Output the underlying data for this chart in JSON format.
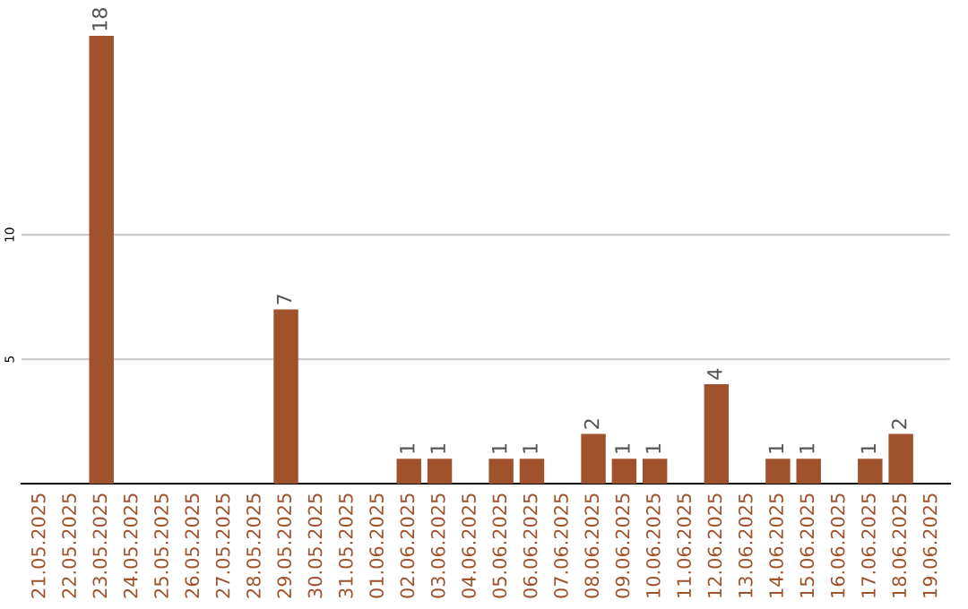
{
  "chart_data": {
    "type": "bar",
    "categories": [
      "21.05.2025",
      "22.05.2025",
      "23.05.2025",
      "24.05.2025",
      "25.05.2025",
      "26.05.2025",
      "27.05.2025",
      "28.05.2025",
      "29.05.2025",
      "30.05.2025",
      "31.05.2025",
      "01.06.2025",
      "02.06.2025",
      "03.06.2025",
      "04.06.2025",
      "05.06.2025",
      "06.06.2025",
      "07.06.2025",
      "08.06.2025",
      "09.06.2025",
      "10.06.2025",
      "11.06.2025",
      "12.06.2025",
      "13.06.2025",
      "14.06.2025",
      "15.06.2025",
      "16.06.2025",
      "17.06.2025",
      "18.06.2025",
      "19.06.2025"
    ],
    "values": [
      0,
      0,
      18,
      0,
      0,
      0,
      0,
      0,
      7,
      0,
      0,
      0,
      1,
      1,
      0,
      1,
      1,
      0,
      2,
      1,
      1,
      0,
      4,
      0,
      1,
      1,
      0,
      1,
      2,
      0
    ],
    "value_labels": [
      null,
      null,
      "18",
      null,
      null,
      null,
      null,
      null,
      "7",
      null,
      null,
      null,
      "1",
      "1",
      null,
      "1",
      "1",
      null,
      "2",
      "1",
      "1",
      null,
      "4",
      null,
      "1",
      "1",
      null,
      "1",
      "2",
      null
    ],
    "color": "#a0522d",
    "ylim": [
      0,
      18
    ],
    "yticks": [
      5,
      10
    ],
    "grid": "y",
    "legend": false
  }
}
